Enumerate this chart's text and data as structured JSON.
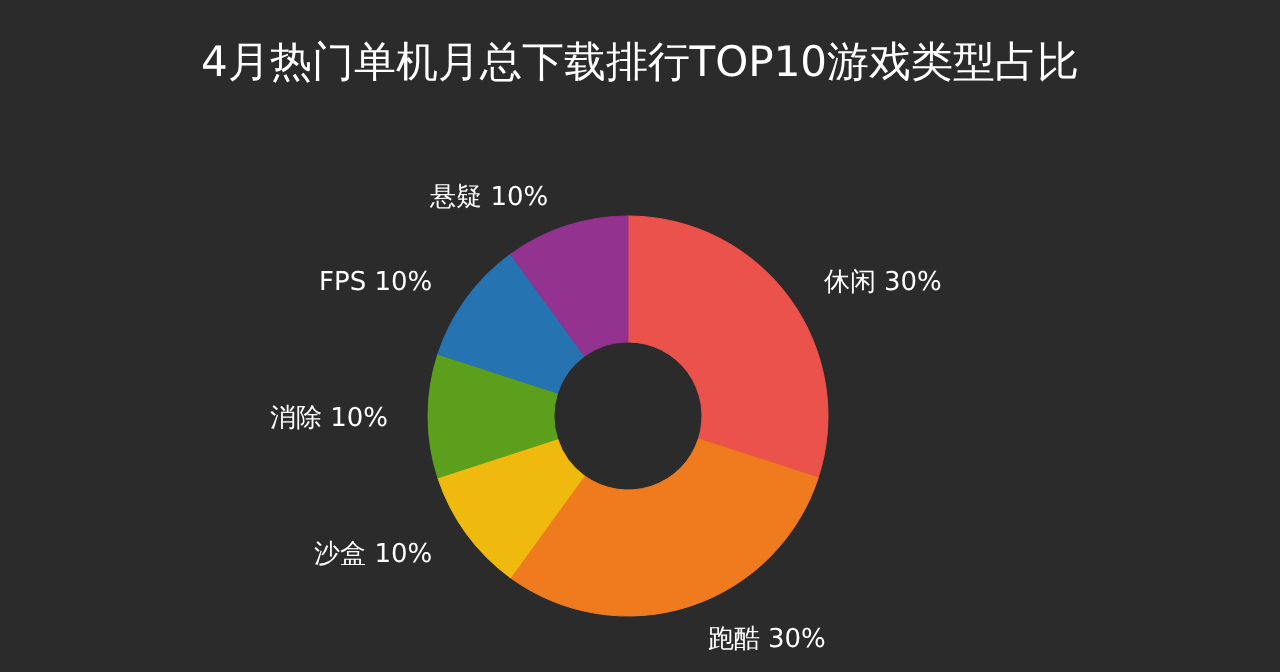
{
  "chart_data": {
    "type": "donut",
    "title": "4月热门单机月总下载排行TOP10游戏类型占比",
    "categories": [
      "休闲",
      "跑酷",
      "沙盒",
      "消除",
      "FPS",
      "悬疑"
    ],
    "values": [
      30,
      30,
      10,
      10,
      10,
      10
    ],
    "value_labels": [
      "30%",
      "30%",
      "10%",
      "10%",
      "10%",
      "10%"
    ],
    "colors": [
      "#ea524b",
      "#f07b1e",
      "#efb90d",
      "#5c9f1c",
      "#2673b1",
      "#93328f"
    ]
  }
}
